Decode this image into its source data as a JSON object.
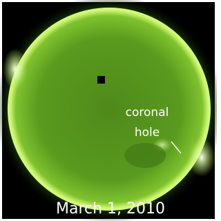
{
  "annotation": {
    "lines": [
      "coronal",
      "hole"
    ]
  },
  "caption": "March 1, 2010"
}
